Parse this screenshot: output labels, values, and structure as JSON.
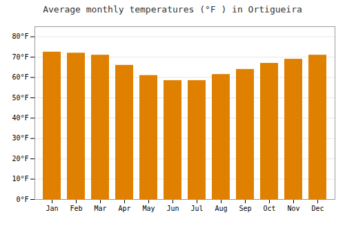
{
  "chart_data": {
    "type": "bar",
    "title": "Average monthly temperatures (°F ) in Ortigueira",
    "categories": [
      "Jan",
      "Feb",
      "Mar",
      "Apr",
      "May",
      "Jun",
      "Jul",
      "Aug",
      "Sep",
      "Oct",
      "Nov",
      "Dec"
    ],
    "values": [
      72.5,
      72.0,
      71.0,
      66.0,
      61.0,
      58.5,
      58.5,
      61.5,
      64.0,
      67.0,
      69.0,
      71.0
    ],
    "color": "#E08000",
    "ylim": [
      0,
      85
    ],
    "yticks": [
      {
        "value": 0,
        "label": "0°F"
      },
      {
        "value": 10,
        "label": "10°F"
      },
      {
        "value": 20,
        "label": "20°F"
      },
      {
        "value": 30,
        "label": "30°F"
      },
      {
        "value": 40,
        "label": "40°F"
      },
      {
        "value": 50,
        "label": "50°F"
      },
      {
        "value": 60,
        "label": "60°F"
      },
      {
        "value": 70,
        "label": "70°F"
      },
      {
        "value": 80,
        "label": "80°F"
      }
    ],
    "grid": true
  }
}
